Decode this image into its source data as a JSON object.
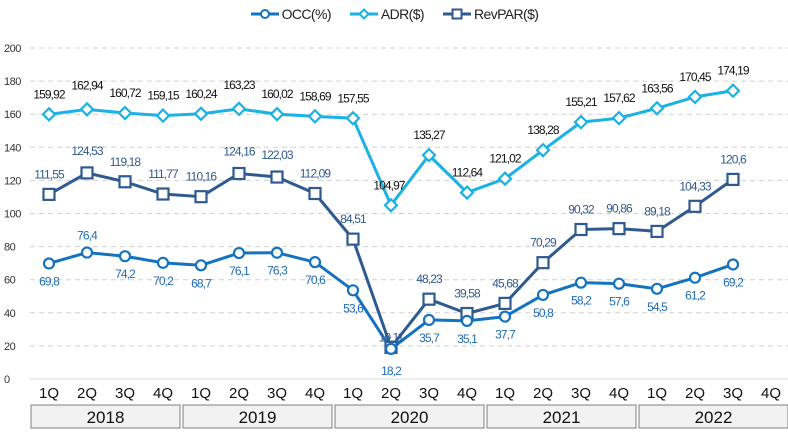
{
  "chart_data": {
    "type": "line",
    "title": "",
    "xlabel": "",
    "ylabel": "",
    "ylim": [
      0,
      200
    ],
    "yticks": [
      0,
      20,
      40,
      60,
      80,
      100,
      120,
      140,
      160,
      180,
      200
    ],
    "grid": true,
    "legend_position": "top-center",
    "categories": [
      "1Q",
      "2Q",
      "3Q",
      "4Q",
      "1Q",
      "2Q",
      "3Q",
      "4Q",
      "1Q",
      "2Q",
      "3Q",
      "4Q",
      "1Q",
      "2Q",
      "3Q",
      "4Q",
      "1Q",
      "2Q",
      "3Q",
      "4Q"
    ],
    "groups": [
      {
        "label": "2018",
        "count": 4
      },
      {
        "label": "2019",
        "count": 4
      },
      {
        "label": "2020",
        "count": 4
      },
      {
        "label": "2021",
        "count": 4
      },
      {
        "label": "2022",
        "count": 4
      }
    ],
    "series": [
      {
        "name": "OCC(%)",
        "key": "occ",
        "marker": "circle",
        "color": "#1473C0",
        "label_color": "#1F6BB5",
        "values": [
          69.8,
          76.4,
          74.2,
          70.2,
          68.7,
          76.1,
          76.3,
          70.6,
          53.6,
          18.2,
          35.7,
          35.1,
          37.7,
          50.8,
          58.2,
          57.6,
          54.5,
          61.2,
          69.2,
          null
        ],
        "labels": [
          "69,8",
          "76,4",
          "74,2",
          "70,2",
          "68,7",
          "76,1",
          "76,3",
          "70,6",
          "53,6",
          "18,2",
          "35,7",
          "35,1",
          "37,7",
          "50,8",
          "58,2",
          "57,6",
          "54,5",
          "61,2",
          "69,2",
          ""
        ]
      },
      {
        "name": "ADR($)",
        "key": "adr",
        "marker": "diamond",
        "color": "#1AB1E4",
        "label_color": "#111111",
        "values": [
          159.92,
          162.94,
          160.72,
          159.15,
          160.24,
          163.23,
          160.02,
          158.69,
          157.55,
          104.97,
          135.27,
          112.64,
          121.02,
          138.28,
          155.21,
          157.62,
          163.56,
          170.45,
          174.19,
          null
        ],
        "labels": [
          "159,92",
          "162,94",
          "160,72",
          "159,15",
          "160,24",
          "163,23",
          "160,02",
          "158,69",
          "157,55",
          "104,97",
          "135,27",
          "112,64",
          "121,02",
          "138,28",
          "155,21",
          "157,62",
          "163,56",
          "170,45",
          "174,19",
          ""
        ]
      },
      {
        "name": "RevPAR($)",
        "key": "revpar",
        "marker": "square",
        "color": "#2F5A8F",
        "label_color": "#2F5A8F",
        "values": [
          111.55,
          124.53,
          119.18,
          111.77,
          110.16,
          124.16,
          122.03,
          112.09,
          84.51,
          19.11,
          48.23,
          39.58,
          45.68,
          70.29,
          90.32,
          90.86,
          89.18,
          104.33,
          120.6,
          null
        ],
        "labels": [
          "111,55",
          "124,53",
          "119,18",
          "111,77",
          "110,16",
          "124,16",
          "122,03",
          "112,09",
          "84,51",
          "19,11",
          "48,23",
          "39,58",
          "45,68",
          "70,29",
          "90,32",
          "90,86",
          "89,18",
          "104,33",
          "120,6",
          ""
        ]
      }
    ]
  }
}
